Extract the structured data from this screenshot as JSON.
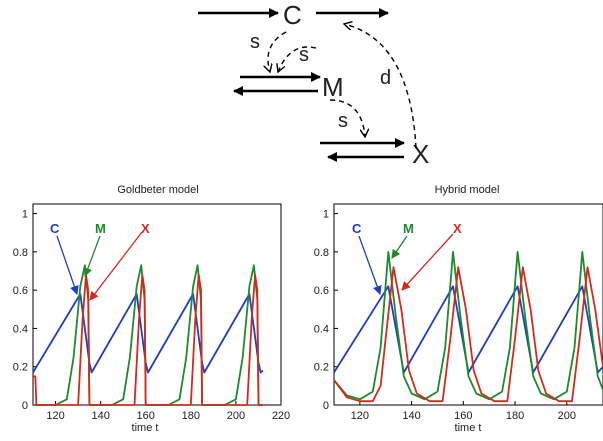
{
  "diagram": {
    "nodes": [
      {
        "id": "C",
        "label": "C"
      },
      {
        "id": "M",
        "label": "M"
      },
      {
        "id": "X",
        "label": "X"
      }
    ],
    "edges": [
      {
        "from": "C",
        "to": "M",
        "label": "s",
        "style": "dashed"
      },
      {
        "from": "C",
        "to": "M",
        "label": "s",
        "style": "dashed"
      },
      {
        "from": "M",
        "to": "X",
        "label": "s",
        "style": "dashed"
      },
      {
        "from": "X",
        "to": "C",
        "label": "d",
        "style": "dashed"
      }
    ]
  },
  "chart_data": [
    {
      "type": "line",
      "title": "Goldbeter model",
      "xlabel": "time t",
      "ylabel": "",
      "xlim": [
        110,
        220
      ],
      "ylim": [
        0,
        1.05
      ],
      "xticks": [
        120,
        140,
        160,
        180,
        200,
        220
      ],
      "yticks": [
        0,
        0.2,
        0.4,
        0.6,
        0.8,
        1
      ],
      "ytick_labels": [
        "0",
        "0.2",
        "0.4",
        "0.6",
        "0.8",
        "1"
      ],
      "series": [
        {
          "name": "C",
          "color": "#1f3fbf",
          "x": [
            110,
            131,
            135,
            136,
            156,
            160,
            161,
            181,
            185,
            186,
            206,
            210,
            211,
            212
          ],
          "y": [
            0.17,
            0.58,
            0.22,
            0.17,
            0.58,
            0.22,
            0.17,
            0.58,
            0.22,
            0.17,
            0.58,
            0.22,
            0.17,
            0.18
          ]
        },
        {
          "name": "M",
          "color": "#1e8a2a",
          "x": [
            110,
            120,
            125,
            128,
            131,
            133,
            134.5,
            135,
            137,
            145,
            150,
            153,
            156,
            158,
            159.5,
            160,
            162,
            170,
            175,
            178,
            181,
            183,
            184.5,
            185,
            187,
            195,
            200,
            203,
            206,
            208,
            209.5,
            210,
            212
          ],
          "y": [
            0.0,
            0.0,
            0.03,
            0.25,
            0.62,
            0.73,
            0.55,
            0.0,
            0.0,
            0.0,
            0.03,
            0.25,
            0.62,
            0.73,
            0.55,
            0.0,
            0.0,
            0.0,
            0.03,
            0.25,
            0.62,
            0.73,
            0.55,
            0.0,
            0.0,
            0.0,
            0.03,
            0.25,
            0.62,
            0.73,
            0.55,
            0.0,
            0.0
          ]
        },
        {
          "name": "X",
          "color": "#d42a1e",
          "x": [
            110,
            111,
            111.5,
            130,
            132,
            133.5,
            134.5,
            135,
            137,
            155,
            157,
            158.5,
            159.5,
            160,
            162,
            180,
            182,
            183.5,
            184.5,
            185,
            187,
            205,
            207,
            208.5,
            209.5,
            210,
            212
          ],
          "y": [
            0.15,
            0.15,
            0.0,
            0.0,
            0.45,
            0.68,
            0.6,
            0.0,
            0.0,
            0.0,
            0.45,
            0.68,
            0.6,
            0.0,
            0.0,
            0.0,
            0.45,
            0.68,
            0.6,
            0.0,
            0.0,
            0.0,
            0.45,
            0.68,
            0.6,
            0.0,
            0.0
          ]
        }
      ]
    },
    {
      "type": "line",
      "title": "Hybrid model",
      "xlabel": "time t",
      "ylabel": "",
      "xlim": [
        110,
        214
      ],
      "ylim": [
        0,
        1.05
      ],
      "xticks": [
        120,
        140,
        160,
        180,
        200
      ],
      "yticks": [
        0,
        0.2,
        0.4,
        0.6,
        0.8,
        1
      ],
      "ytick_labels": [
        "0",
        "0.2",
        "0.4",
        "0.6",
        "0.8",
        "1"
      ],
      "series": [
        {
          "name": "C",
          "color": "#1f3fbf",
          "x": [
            110,
            131,
            137,
            156,
            162,
            181,
            187,
            206,
            212,
            214
          ],
          "y": [
            0.17,
            0.62,
            0.17,
            0.62,
            0.17,
            0.62,
            0.17,
            0.62,
            0.17,
            0.2
          ]
        },
        {
          "name": "M",
          "color": "#1e8a2a",
          "x": [
            110,
            115,
            120,
            125,
            128,
            131,
            134,
            137,
            140,
            145,
            150,
            153,
            156,
            159,
            162,
            165,
            170,
            175,
            178,
            181,
            184,
            187,
            190,
            195,
            200,
            203,
            206,
            209,
            212,
            214
          ],
          "y": [
            0.13,
            0.05,
            0.03,
            0.07,
            0.3,
            0.8,
            0.45,
            0.15,
            0.06,
            0.03,
            0.07,
            0.3,
            0.8,
            0.45,
            0.15,
            0.06,
            0.03,
            0.07,
            0.3,
            0.8,
            0.45,
            0.15,
            0.06,
            0.03,
            0.07,
            0.3,
            0.8,
            0.45,
            0.15,
            0.08
          ]
        },
        {
          "name": "X",
          "color": "#d42a1e",
          "x": [
            110,
            115,
            120,
            125,
            128,
            130,
            133,
            136,
            139,
            142,
            147,
            152,
            155,
            158,
            161,
            164,
            167,
            172,
            177,
            180,
            183,
            186,
            189,
            192,
            197,
            202,
            205,
            208,
            211,
            214
          ],
          "y": [
            0.13,
            0.04,
            0.02,
            0.02,
            0.1,
            0.35,
            0.72,
            0.5,
            0.18,
            0.06,
            0.02,
            0.02,
            0.35,
            0.72,
            0.5,
            0.18,
            0.06,
            0.02,
            0.02,
            0.35,
            0.72,
            0.5,
            0.18,
            0.06,
            0.02,
            0.02,
            0.35,
            0.72,
            0.5,
            0.2
          ]
        }
      ]
    }
  ]
}
